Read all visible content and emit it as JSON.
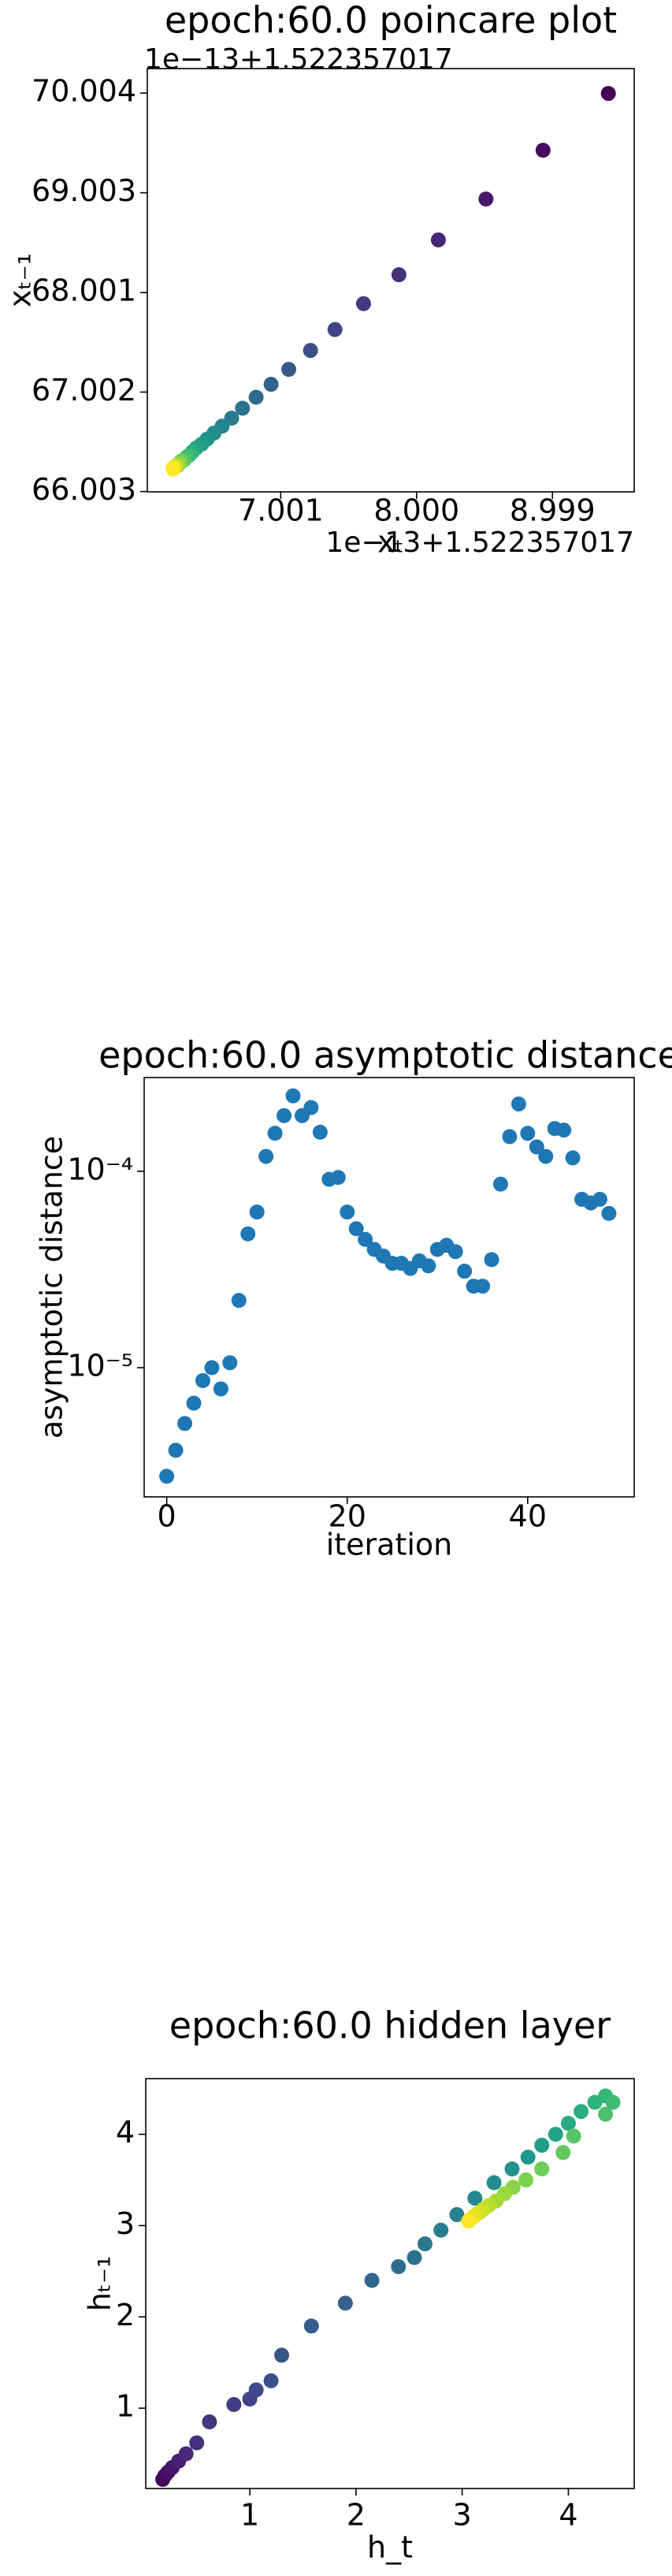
{
  "chart_data": [
    {
      "type": "scatter",
      "title": "epoch:60.0 poincare plot",
      "x_label": "xₜ",
      "y_label": "xₜ₋₁",
      "offset_text_x": "1e−13+1.522357017",
      "offset_text_y": "1e−13+1.522357017",
      "cmap": "viridis",
      "x": [
        9.41,
        8.93,
        8.51,
        8.16,
        7.87,
        7.61,
        7.4,
        7.22,
        7.06,
        6.93,
        6.82,
        6.72,
        6.64,
        6.57,
        6.51,
        6.46,
        6.42,
        6.38,
        6.35,
        6.33,
        6.31,
        6.29,
        6.27,
        6.26,
        6.25,
        6.24,
        6.23,
        6.22,
        6.21,
        6.21
      ],
      "values": [
        70.0,
        69.43,
        68.94,
        68.53,
        68.18,
        67.89,
        67.63,
        67.42,
        67.23,
        67.08,
        66.95,
        66.84,
        66.74,
        66.66,
        66.59,
        66.53,
        66.48,
        66.44,
        66.4,
        66.37,
        66.35,
        66.32,
        66.31,
        66.29,
        66.28,
        66.26,
        66.26,
        66.25,
        66.24,
        66.23
      ],
      "xlim": [
        6.02,
        9.6
      ],
      "ylim": [
        66.0,
        70.25
      ],
      "xticks": [
        7.001,
        {
          "value": 8.0,
          "label": "8.000"
        },
        8.999
      ],
      "yticks": [
        66.003,
        67.002,
        68.001,
        69.003,
        70.004
      ]
    },
    {
      "type": "scatter",
      "title": "epoch:60.0 asymptotic distance",
      "x_label": "iteration",
      "y_label": "asymptotic distance",
      "color": "#1f77b4",
      "yscale": "log",
      "x": [
        0,
        1,
        2,
        3,
        4,
        5,
        6,
        7,
        8,
        9,
        10,
        11,
        12,
        13,
        14,
        15,
        16,
        17,
        18,
        19,
        20,
        21,
        22,
        23,
        24,
        25,
        26,
        27,
        28,
        29,
        30,
        31,
        32,
        33,
        34,
        35,
        36,
        37,
        38,
        39,
        40,
        41,
        42,
        43,
        44,
        45,
        46,
        47,
        48,
        49
      ],
      "values": [
        2.8e-06,
        3.8e-06,
        5.2e-06,
        6.6e-06,
        8.6e-06,
        1e-05,
        7.8e-06,
        1.06e-05,
        2.2e-05,
        4.8e-05,
        6.2e-05,
        0.000119,
        0.000156,
        0.000192,
        0.000242,
        0.000192,
        0.000211,
        0.000158,
        9.1e-05,
        9.3e-05,
        6.2e-05,
        5.1e-05,
        4.5e-05,
        4e-05,
        3.7e-05,
        3.4e-05,
        3.4e-05,
        3.2e-05,
        3.5e-05,
        3.3e-05,
        4e-05,
        4.2e-05,
        3.9e-05,
        3.1e-05,
        2.6e-05,
        2.6e-05,
        3.55e-05,
        8.6e-05,
        0.00015,
        0.00022,
        0.000156,
        0.000133,
        0.000119,
        0.000165,
        0.000162,
        0.000117,
        7.2e-05,
        6.9e-05,
        7.2e-05,
        6.1e-05
      ],
      "xlim": [
        -2.5,
        51.8
      ],
      "ylim": [
        2.2e-06,
        0.0003
      ],
      "xticks": [
        0,
        20,
        40
      ],
      "yticks": [
        {
          "value": 1e-05,
          "label": "10⁻⁵"
        },
        {
          "value": 0.0001,
          "label": "10⁻⁴"
        }
      ]
    },
    {
      "type": "scatter",
      "title": "epoch:60.0 hidden layer",
      "x_label": "h_t",
      "y_label": "hₜ₋₁",
      "cmap": "viridis",
      "x": [
        0.18,
        0.2,
        0.23,
        0.27,
        0.33,
        0.4,
        0.5,
        0.62,
        0.85,
        1.0,
        1.06,
        1.2,
        1.3,
        1.58,
        1.9,
        2.15,
        2.4,
        2.55,
        2.65,
        2.8,
        2.95,
        3.12,
        3.3,
        3.47,
        3.62,
        3.75,
        3.88,
        4.0,
        4.12,
        4.25,
        4.35,
        4.42,
        4.35,
        4.05,
        3.95,
        3.75,
        3.6,
        3.48,
        3.4,
        3.32,
        3.25,
        3.2,
        3.16,
        3.12,
        3.09,
        3.06
      ],
      "values": [
        0.22,
        0.26,
        0.3,
        0.35,
        0.42,
        0.5,
        0.62,
        0.85,
        1.04,
        1.1,
        1.2,
        1.3,
        1.58,
        1.9,
        2.15,
        2.4,
        2.55,
        2.65,
        2.8,
        2.95,
        3.12,
        3.3,
        3.47,
        3.62,
        3.75,
        3.88,
        4.0,
        4.12,
        4.25,
        4.35,
        4.42,
        4.35,
        4.22,
        3.98,
        3.8,
        3.62,
        3.5,
        3.42,
        3.35,
        3.27,
        3.22,
        3.18,
        3.14,
        3.11,
        3.08,
        3.05
      ],
      "xlim": [
        0.02,
        4.62
      ],
      "ylim": [
        0.12,
        4.61
      ],
      "xticks": [
        1,
        2,
        3,
        4
      ],
      "yticks": [
        1,
        2,
        3,
        4
      ]
    }
  ]
}
